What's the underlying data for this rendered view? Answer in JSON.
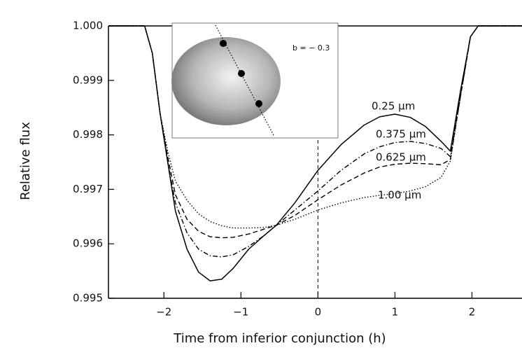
{
  "chart_data": {
    "type": "line",
    "xlabel": "Time from inferior conjunction (h)",
    "ylabel": "Relative flux",
    "inset_label": "b = − 0.3",
    "x": [
      -2.72,
      -2.25,
      -2.15,
      -2.05,
      -1.95,
      -1.85,
      -1.7,
      -1.55,
      -1.4,
      -1.25,
      -1.1,
      -0.9,
      -0.7,
      -0.54,
      -0.3,
      0,
      0.3,
      0.6,
      0.8,
      1.0,
      1.2,
      1.4,
      1.6,
      1.72,
      1.85,
      1.98,
      2.08,
      2.65
    ],
    "series": [
      {
        "name": "0.25 μm",
        "color": "#000000",
        "style": "solid",
        "values": [
          1.0,
          1.0,
          0.9995,
          0.9984,
          0.9975,
          0.9966,
          0.9959,
          0.99548,
          0.99532,
          0.99535,
          0.99555,
          0.9959,
          0.99615,
          0.99634,
          0.99675,
          0.99735,
          0.99782,
          0.99818,
          0.99833,
          0.99838,
          0.99832,
          0.99815,
          0.99788,
          0.9977,
          0.9988,
          0.9998,
          1.0,
          1.0
        ]
      },
      {
        "name": "0.375 μm",
        "color": "#000000",
        "style": "dashdot",
        "values": [
          1.0,
          1.0,
          0.9995,
          0.9984,
          0.9975,
          0.99675,
          0.9962,
          0.9959,
          0.99578,
          0.99576,
          0.9958,
          0.99595,
          0.99615,
          0.99634,
          0.99662,
          0.99697,
          0.99735,
          0.99765,
          0.99778,
          0.99786,
          0.99788,
          0.99784,
          0.99775,
          0.9976,
          0.9987,
          0.9998,
          1.0,
          1.0
        ]
      },
      {
        "name": "0.625 μm",
        "color": "#000000",
        "style": "dashed",
        "values": [
          1.0,
          1.0,
          0.9995,
          0.9984,
          0.9976,
          0.9969,
          0.99645,
          0.99623,
          0.99613,
          0.99611,
          0.99612,
          0.99618,
          0.99627,
          0.99634,
          0.99652,
          0.99681,
          0.99708,
          0.9973,
          0.99741,
          0.99746,
          0.99748,
          0.99747,
          0.99745,
          0.99755,
          0.9987,
          0.9998,
          1.0,
          1.0
        ]
      },
      {
        "name": "1.00 μm",
        "color": "#000000",
        "style": "dotted",
        "values": [
          1.0,
          1.0,
          0.9995,
          0.9984,
          0.9977,
          0.99715,
          0.9968,
          0.99655,
          0.99641,
          0.99633,
          0.99629,
          0.99629,
          0.9963,
          0.99634,
          0.99645,
          0.99662,
          0.99675,
          0.99685,
          0.99689,
          0.99692,
          0.99697,
          0.99705,
          0.99722,
          0.99752,
          0.9987,
          0.9998,
          1.0,
          1.0
        ]
      }
    ],
    "xlim": [
      -2.72,
      2.65
    ],
    "ylim": [
      0.995,
      1.0
    ],
    "xticks": [
      {
        "value": -2,
        "label": "−2"
      },
      {
        "value": -1,
        "label": "−1"
      },
      0,
      1,
      2
    ],
    "yticks": [
      {
        "value": 0.995,
        "label": "0.995"
      },
      {
        "value": 0.996,
        "label": "0.996"
      },
      {
        "value": 0.997,
        "label": "0.997"
      },
      {
        "value": 0.998,
        "label": "0.998"
      },
      {
        "value": 0.999,
        "label": "0.999"
      },
      {
        "value": 1.0,
        "label": "1.000"
      }
    ],
    "vline_x": 0
  }
}
